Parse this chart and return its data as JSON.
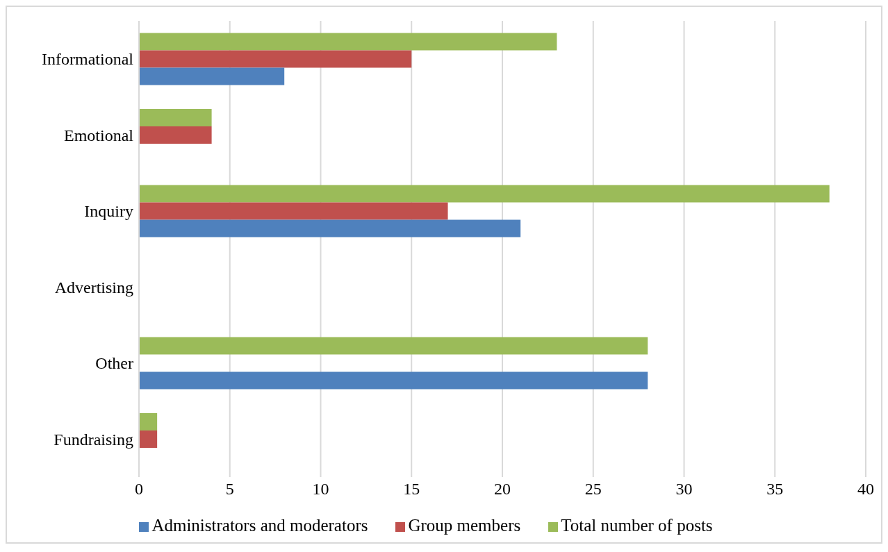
{
  "chart_data": {
    "type": "bar",
    "orientation": "horizontal",
    "categories": [
      "Informational",
      "Emotional",
      "Inquiry",
      "Advertising",
      "Other",
      "Fundraising"
    ],
    "series": [
      {
        "name": "Total number of posts",
        "color": "#9bbb59",
        "values": [
          23,
          4,
          38,
          0,
          28,
          1
        ]
      },
      {
        "name": "Group members",
        "color": "#c0504d",
        "values": [
          15,
          4,
          17,
          0,
          0,
          1
        ]
      },
      {
        "name": "Administrators and moderators",
        "color": "#4f81bd",
        "values": [
          8,
          0,
          21,
          0,
          28,
          0
        ]
      }
    ],
    "xlim": [
      0,
      40
    ],
    "xticks": [
      0,
      5,
      10,
      15,
      20,
      25,
      30,
      35,
      40
    ],
    "grid": "x",
    "legend": "bottom"
  }
}
